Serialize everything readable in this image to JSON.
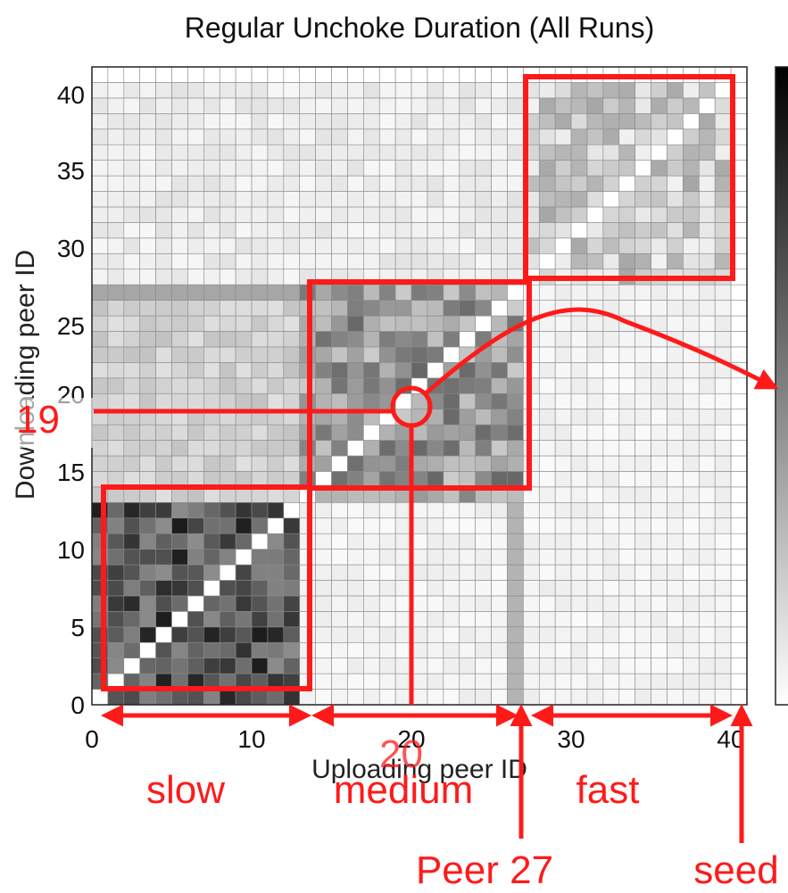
{
  "chart_data": {
    "type": "heatmap",
    "title": "Regular Unchoke Duration (All Runs)",
    "xlabel": "Uploading peer ID",
    "ylabel": "Downloading peer ID",
    "xlim": [
      0,
      41
    ],
    "ylim": [
      0,
      41
    ],
    "x_ticks": [
      "0",
      "10",
      "20",
      "30",
      "40"
    ],
    "y_ticks": [
      "0",
      "5",
      "10",
      "15",
      "20",
      "25",
      "30",
      "35",
      "40"
    ],
    "grid": true,
    "colormap": "grayscale (white = low, black = high)",
    "colorbar": "right, unlabeled",
    "groups": [
      {
        "name": "slow",
        "peer_range": [
          1,
          13
        ]
      },
      {
        "name": "medium",
        "peer_range": [
          14,
          27
        ]
      },
      {
        "name": "fast",
        "peer_range": [
          28,
          40
        ]
      }
    ],
    "annotations": {
      "highlight_down": "19",
      "highlight_up": "20",
      "peer27": "Peer 27",
      "seed": "seed"
    }
  }
}
